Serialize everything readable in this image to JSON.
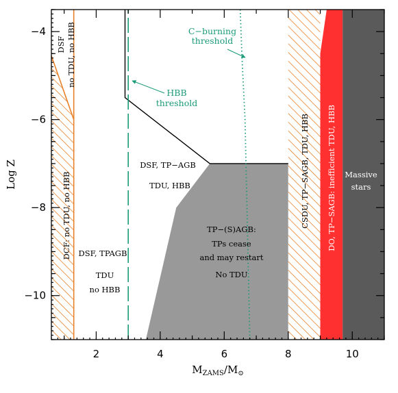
{
  "chart_data": {
    "type": "area",
    "title": "",
    "xlabel": "M_ZAMS/M_⊙",
    "xlabel_main": "M",
    "xlabel_sub": "ZAMS",
    "xlabel_rest": "/M",
    "xlabel_sun": "⊙",
    "ylabel": "Log Z",
    "xlim": [
      0.6,
      11.0
    ],
    "ylim": [
      -11.0,
      -3.5
    ],
    "x_ticks": [
      2,
      4,
      6,
      8,
      10
    ],
    "y_ticks": [
      -4,
      -6,
      -8,
      -10
    ],
    "x_tick_labels": [
      "2",
      "4",
      "6",
      "8",
      "10"
    ],
    "y_tick_labels": [
      "−4",
      "−6",
      "−8",
      "−10"
    ],
    "colors": {
      "hatch": "#e8822a",
      "gray_region": "#999999",
      "red_region": "#ff3030",
      "dark_region": "#5a5a5a",
      "threshold": "#1a9a78",
      "boundary": "#000000"
    },
    "regions": [
      {
        "name": "dcf-hatched",
        "fill": "hatch",
        "polygon": [
          [
            0.6,
            -11
          ],
          [
            1.3,
            -11
          ],
          [
            1.3,
            -6
          ],
          [
            0.6,
            -4.55
          ]
        ]
      },
      {
        "name": "tp-sagb-gray",
        "fill": "gray_region",
        "polygon": [
          [
            3.55,
            -11
          ],
          [
            8.0,
            -11
          ],
          [
            8.0,
            -7.0
          ],
          [
            5.55,
            -7.0
          ],
          [
            4.5,
            -8.0
          ]
        ]
      },
      {
        "name": "csdu-hatched",
        "fill": "hatch",
        "polygon": [
          [
            8.0,
            -11
          ],
          [
            9.0,
            -11
          ],
          [
            9.0,
            -3.5
          ],
          [
            8.0,
            -3.5
          ]
        ]
      },
      {
        "name": "do-red",
        "fill": "red_region",
        "polygon": [
          [
            9.0,
            -11
          ],
          [
            9.7,
            -11
          ],
          [
            9.7,
            -3.5
          ],
          [
            9.2,
            -3.5
          ],
          [
            9.0,
            -4.5
          ]
        ]
      },
      {
        "name": "massive-dark",
        "fill": "dark_region",
        "polygon": [
          [
            9.7,
            -11
          ],
          [
            11.0,
            -11
          ],
          [
            11.0,
            -3.5
          ],
          [
            9.7,
            -3.5
          ]
        ]
      }
    ],
    "lines": [
      {
        "name": "dcf-boundary",
        "style": "solid",
        "color": "hatch",
        "points": [
          [
            0.6,
            -4.55
          ],
          [
            1.3,
            -6.0
          ]
        ]
      },
      {
        "name": "dcf-right-edge",
        "style": "solid",
        "color": "hatch",
        "points": [
          [
            1.3,
            -11
          ],
          [
            1.3,
            -3.5
          ]
        ]
      },
      {
        "name": "tp-agb-boundary",
        "style": "solid",
        "color": "boundary",
        "points": [
          [
            2.9,
            -3.5
          ],
          [
            2.9,
            -5.5
          ],
          [
            5.55,
            -7.0
          ],
          [
            8.0,
            -7.0
          ]
        ]
      },
      {
        "name": "hbb-threshold",
        "style": "dashed",
        "color": "threshold",
        "points": [
          [
            3.0,
            -11
          ],
          [
            3.0,
            -3.5
          ]
        ]
      },
      {
        "name": "c-burning-threshold",
        "style": "dotted",
        "color": "threshold",
        "points": [
          [
            6.5,
            -3.5
          ],
          [
            6.55,
            -4.5
          ],
          [
            6.65,
            -6.0
          ],
          [
            6.8,
            -11
          ]
        ]
      }
    ],
    "labels": {
      "dsf_top_1": "DSF",
      "dsf_top_2": "no TDU, no HBB",
      "dcf": "DCF: no TDU, no HBB",
      "dsf_tpagb": "DSF, TPAGB",
      "tdu": "TDU",
      "no_hbb": "no HBB",
      "dsf_tp_agb": "DSF, TP−AGB",
      "tdu_hbb": "TDU, HBB",
      "tp_sagb_1": "TP−(S)AGB:",
      "tp_sagb_2": "TPs cease",
      "tp_sagb_3": "and may restart",
      "no_tdu": "No TDU",
      "csdu": "CSDU, TP−SAGB, TDU, HBB",
      "do": "DO, TP−SAGB: inefficient TDU, HBB",
      "massive_1": "Massive",
      "massive_2": "stars",
      "hbb_threshold_1": "HBB",
      "hbb_threshold_2": "threshold",
      "c_burning_1": "C−burning",
      "c_burning_2": "threshold"
    }
  }
}
